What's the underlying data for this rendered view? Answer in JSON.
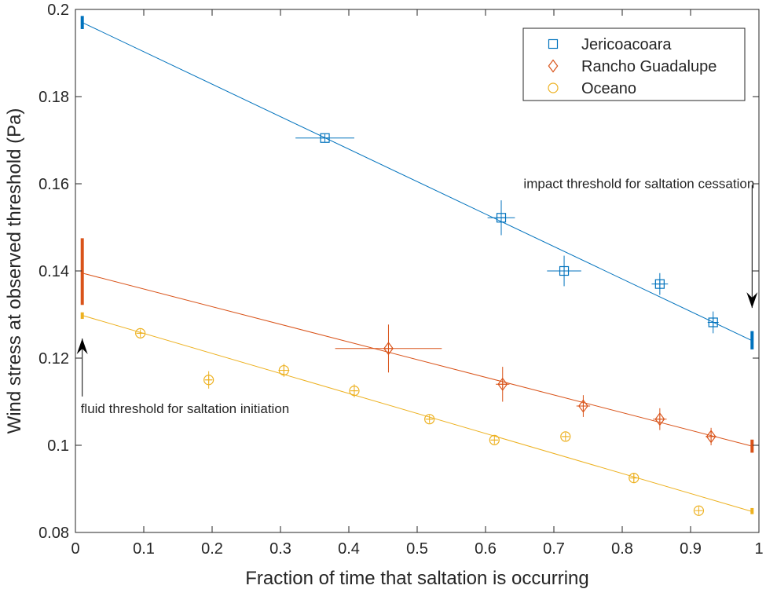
{
  "chart_data": {
    "type": "scatter",
    "title": "",
    "xlabel": "Fraction of time that saltation is occurring",
    "ylabel": "Wind stress at observed threshold (Pa)",
    "xlim": [
      0,
      1
    ],
    "ylim": [
      0.08,
      0.2
    ],
    "x_ticks": [
      0,
      0.1,
      0.2,
      0.3,
      0.4,
      0.5,
      0.6,
      0.7,
      0.8,
      0.9,
      1
    ],
    "x_tick_labels": [
      "0",
      "0.1",
      "0.2",
      "0.3",
      "0.4",
      "0.5",
      "0.6",
      "0.7",
      "0.8",
      "0.9",
      "1"
    ],
    "y_ticks": [
      0.08,
      0.1,
      0.12,
      0.14,
      0.16,
      0.18,
      0.2
    ],
    "y_tick_labels": [
      "0.08",
      "0.1",
      "0.12",
      "0.14",
      "0.16",
      "0.18",
      "0.2"
    ],
    "grid": false,
    "legend_position": "top-right",
    "series": [
      {
        "name": "Jericoacoara",
        "marker": "square",
        "color": "#0072BD",
        "points": [
          {
            "x": 0.365,
            "y": 0.1705,
            "xerr": 0.043,
            "yerr": 0.0
          },
          {
            "x": 0.623,
            "y": 0.1522,
            "xerr": 0.02,
            "yerr": 0.004
          },
          {
            "x": 0.715,
            "y": 0.14,
            "xerr": 0.025,
            "yerr": 0.0035
          },
          {
            "x": 0.855,
            "y": 0.137,
            "xerr": 0.012,
            "yerr": 0.0025
          },
          {
            "x": 0.933,
            "y": 0.1282,
            "xerr": 0.008,
            "yerr": 0.0025
          }
        ],
        "fit": {
          "x": [
            0.01,
            0.99
          ],
          "y": [
            0.197,
            0.124
          ]
        },
        "endpoints": {
          "x_start": 0.01,
          "y_start": [
            0.1955,
            0.1985
          ],
          "x_end": 0.99,
          "y_end": [
            0.122,
            0.1262
          ]
        }
      },
      {
        "name": "Rancho Guadalupe",
        "marker": "diamond",
        "color": "#D95319",
        "points": [
          {
            "x": 0.458,
            "y": 0.1222,
            "xerr": 0.078,
            "yerr": 0.0055
          },
          {
            "x": 0.625,
            "y": 0.114,
            "xerr": 0.01,
            "yerr": 0.004
          },
          {
            "x": 0.743,
            "y": 0.109,
            "xerr": 0.01,
            "yerr": 0.0025
          },
          {
            "x": 0.855,
            "y": 0.106,
            "xerr": 0.01,
            "yerr": 0.0025
          },
          {
            "x": 0.93,
            "y": 0.102,
            "xerr": 0.008,
            "yerr": 0.002
          }
        ],
        "fit": {
          "x": [
            0.01,
            0.99
          ],
          "y": [
            0.1395,
            0.0998
          ]
        },
        "endpoints": {
          "x_start": 0.01,
          "y_start": [
            0.1322,
            0.1475
          ],
          "x_end": 0.99,
          "y_end": [
            0.0983,
            0.1013
          ]
        }
      },
      {
        "name": "Oceano",
        "marker": "circle",
        "color": "#EDB120",
        "points": [
          {
            "x": 0.095,
            "y": 0.1257,
            "xerr": 0.005,
            "yerr": 0.0
          },
          {
            "x": 0.195,
            "y": 0.115,
            "xerr": 0.005,
            "yerr": 0.002
          },
          {
            "x": 0.305,
            "y": 0.1172,
            "xerr": 0.008,
            "yerr": 0.0015
          },
          {
            "x": 0.408,
            "y": 0.1125,
            "xerr": 0.005,
            "yerr": 0.0015
          },
          {
            "x": 0.518,
            "y": 0.106,
            "xerr": 0.005,
            "yerr": 0.0
          },
          {
            "x": 0.613,
            "y": 0.1012,
            "xerr": 0.005,
            "yerr": 0.0
          },
          {
            "x": 0.717,
            "y": 0.102,
            "xerr": 0.005,
            "yerr": 0.0
          },
          {
            "x": 0.817,
            "y": 0.0925,
            "xerr": 0.005,
            "yerr": 0.001
          },
          {
            "x": 0.912,
            "y": 0.085,
            "xerr": 0.0,
            "yerr": 0.0
          }
        ],
        "fit": {
          "x": [
            0.01,
            0.99
          ],
          "y": [
            0.1298,
            0.0848
          ]
        },
        "endpoints": {
          "x_start": 0.01,
          "y_start": [
            0.129,
            0.1305
          ],
          "x_end": 0.99,
          "y_end": [
            0.0842,
            0.0856
          ]
        }
      }
    ],
    "annotations": [
      {
        "text": "impact threshold for saltation cessation",
        "arrow_x": 0.99,
        "arrow_from_y": 0.1597,
        "arrow_to_y": 0.1315
      },
      {
        "text": "fluid threshold for saltation initiation",
        "arrow_x": 0.01,
        "arrow_from_y": 0.1112,
        "arrow_to_y": 0.1245
      }
    ]
  }
}
